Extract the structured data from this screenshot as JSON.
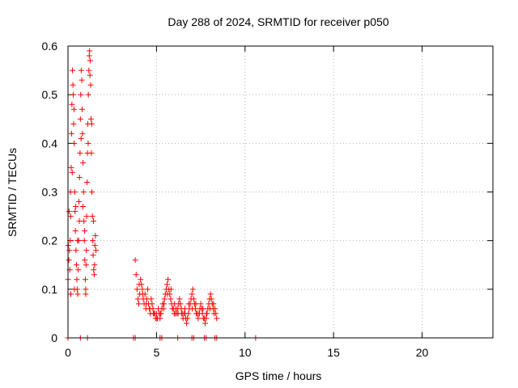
{
  "chart_data": {
    "type": "scatter",
    "title": "Day 288 of 2024, SRMTID for receiver p050",
    "xlabel": "GPS time / hours",
    "ylabel": "SRMTID / TECUs",
    "xlim": [
      0,
      24
    ],
    "ylim": [
      0,
      0.6
    ],
    "xticks": [
      0,
      5,
      10,
      15,
      20
    ],
    "yticks": [
      0,
      0.1,
      0.2,
      0.3,
      0.4,
      0.5,
      0.6
    ],
    "xtick_labels": [
      "0",
      "5",
      "10",
      "15",
      "20"
    ],
    "ytick_labels": [
      "0",
      "0.1",
      "0.2",
      "0.3",
      "0.4",
      "0.5",
      "0.6"
    ],
    "grid": true,
    "marker": "+",
    "color": "#ff0000",
    "points": [
      [
        0.0,
        0.12
      ],
      [
        0.02,
        0.19
      ],
      [
        0.05,
        0.16
      ],
      [
        0.08,
        0.18
      ],
      [
        0.1,
        0.14
      ],
      [
        0.12,
        0.2
      ],
      [
        0.15,
        0.25
      ],
      [
        0.18,
        0.35
      ],
      [
        0.2,
        0.42
      ],
      [
        0.22,
        0.48
      ],
      [
        0.25,
        0.55
      ],
      [
        0.28,
        0.52
      ],
      [
        0.3,
        0.5
      ],
      [
        0.32,
        0.44
      ],
      [
        0.35,
        0.4
      ],
      [
        0.38,
        0.3
      ],
      [
        0.4,
        0.26
      ],
      [
        0.42,
        0.22
      ],
      [
        0.45,
        0.18
      ],
      [
        0.48,
        0.15
      ],
      [
        0.5,
        0.12
      ],
      [
        0.52,
        0.1
      ],
      [
        0.55,
        0.09
      ],
      [
        0.58,
        0.14
      ],
      [
        0.6,
        0.2
      ],
      [
        0.62,
        0.28
      ],
      [
        0.65,
        0.33
      ],
      [
        0.68,
        0.38
      ],
      [
        0.7,
        0.45
      ],
      [
        0.72,
        0.5
      ],
      [
        0.75,
        0.55
      ],
      [
        0.78,
        0.53
      ],
      [
        0.8,
        0.47
      ],
      [
        0.82,
        0.42
      ],
      [
        0.85,
        0.36
      ],
      [
        0.88,
        0.3
      ],
      [
        0.9,
        0.24
      ],
      [
        0.92,
        0.2
      ],
      [
        0.95,
        0.16
      ],
      [
        0.98,
        0.12
      ],
      [
        1.0,
        0.1
      ],
      [
        1.02,
        0.15
      ],
      [
        1.05,
        0.25
      ],
      [
        1.08,
        0.32
      ],
      [
        1.1,
        0.38
      ],
      [
        1.12,
        0.44
      ],
      [
        1.15,
        0.5
      ],
      [
        1.18,
        0.55
      ],
      [
        1.2,
        0.58
      ],
      [
        1.22,
        0.59
      ],
      [
        1.25,
        0.57
      ],
      [
        1.28,
        0.52
      ],
      [
        1.3,
        0.45
      ],
      [
        1.32,
        0.38
      ],
      [
        1.35,
        0.3
      ],
      [
        1.38,
        0.25
      ],
      [
        1.4,
        0.2
      ],
      [
        1.42,
        0.17
      ],
      [
        1.45,
        0.14
      ],
      [
        1.48,
        0.13
      ],
      [
        1.5,
        0.15
      ],
      [
        1.52,
        0.19
      ],
      [
        1.55,
        0.21
      ],
      [
        1.58,
        0.18
      ],
      [
        0.06,
        0.26
      ],
      [
        0.14,
        0.3
      ],
      [
        0.24,
        0.34
      ],
      [
        0.34,
        0.47
      ],
      [
        0.44,
        0.27
      ],
      [
        0.54,
        0.2
      ],
      [
        0.64,
        0.24
      ],
      [
        0.74,
        0.41
      ],
      [
        0.84,
        0.27
      ],
      [
        0.94,
        0.22
      ],
      [
        1.04,
        0.18
      ],
      [
        1.14,
        0.4
      ],
      [
        1.24,
        0.54
      ],
      [
        1.34,
        0.44
      ],
      [
        1.44,
        0.24
      ],
      [
        0.16,
        0.09
      ],
      [
        0.36,
        0.1
      ],
      [
        1.0,
        0.09
      ],
      [
        3.8,
        0.16
      ],
      [
        3.85,
        0.13
      ],
      [
        3.9,
        0.1
      ],
      [
        3.95,
        0.08
      ],
      [
        4.0,
        0.07
      ],
      [
        4.05,
        0.09
      ],
      [
        4.1,
        0.12
      ],
      [
        4.15,
        0.11
      ],
      [
        4.2,
        0.1
      ],
      [
        4.25,
        0.08
      ],
      [
        4.3,
        0.07
      ],
      [
        4.35,
        0.09
      ],
      [
        4.4,
        0.06
      ],
      [
        4.45,
        0.08
      ],
      [
        4.5,
        0.1
      ],
      [
        4.55,
        0.07
      ],
      [
        4.6,
        0.06
      ],
      [
        4.65,
        0.05
      ],
      [
        4.7,
        0.08
      ],
      [
        4.75,
        0.07
      ],
      [
        4.8,
        0.06
      ],
      [
        4.85,
        0.05
      ],
      [
        4.9,
        0.05
      ],
      [
        4.95,
        0.04
      ],
      [
        5.0,
        0.05
      ],
      [
        5.05,
        0.04
      ],
      [
        5.1,
        0.06
      ],
      [
        5.15,
        0.05
      ],
      [
        5.2,
        0.04
      ],
      [
        5.25,
        0.05
      ],
      [
        5.3,
        0.06
      ],
      [
        5.35,
        0.07
      ],
      [
        5.4,
        0.06
      ],
      [
        5.45,
        0.08
      ],
      [
        5.5,
        0.09
      ],
      [
        5.55,
        0.1
      ],
      [
        5.6,
        0.11
      ],
      [
        5.65,
        0.12
      ],
      [
        5.7,
        0.1
      ],
      [
        5.75,
        0.09
      ],
      [
        5.8,
        0.08
      ],
      [
        5.85,
        0.07
      ],
      [
        5.9,
        0.06
      ],
      [
        5.95,
        0.06
      ],
      [
        6.0,
        0.05
      ],
      [
        6.05,
        0.05
      ],
      [
        6.1,
        0.06
      ],
      [
        6.15,
        0.05
      ],
      [
        6.2,
        0.06
      ],
      [
        6.25,
        0.07
      ],
      [
        6.3,
        0.08
      ],
      [
        6.35,
        0.07
      ],
      [
        6.4,
        0.06
      ],
      [
        6.45,
        0.05
      ],
      [
        6.5,
        0.04
      ],
      [
        6.55,
        0.05
      ],
      [
        6.6,
        0.06
      ],
      [
        6.65,
        0.04
      ],
      [
        6.7,
        0.03
      ],
      [
        6.75,
        0.04
      ],
      [
        6.8,
        0.05
      ],
      [
        6.85,
        0.06
      ],
      [
        6.9,
        0.07
      ],
      [
        6.95,
        0.08
      ],
      [
        7.0,
        0.09
      ],
      [
        7.05,
        0.1
      ],
      [
        7.1,
        0.08
      ],
      [
        7.15,
        0.07
      ],
      [
        7.2,
        0.06
      ],
      [
        7.25,
        0.05
      ],
      [
        7.3,
        0.05
      ],
      [
        7.35,
        0.04
      ],
      [
        7.4,
        0.05
      ],
      [
        7.45,
        0.06
      ],
      [
        7.5,
        0.07
      ],
      [
        7.55,
        0.06
      ],
      [
        7.6,
        0.05
      ],
      [
        7.65,
        0.04
      ],
      [
        7.7,
        0.04
      ],
      [
        7.75,
        0.03
      ],
      [
        7.8,
        0.04
      ],
      [
        7.85,
        0.05
      ],
      [
        7.9,
        0.06
      ],
      [
        7.95,
        0.07
      ],
      [
        8.0,
        0.08
      ],
      [
        8.05,
        0.09
      ],
      [
        8.1,
        0.08
      ],
      [
        8.15,
        0.07
      ],
      [
        8.2,
        0.06
      ],
      [
        8.25,
        0.05
      ],
      [
        8.3,
        0.06
      ],
      [
        8.35,
        0.05
      ],
      [
        8.4,
        0.04
      ],
      [
        4.02,
        0.11
      ],
      [
        4.22,
        0.09
      ],
      [
        4.42,
        0.07
      ],
      [
        4.62,
        0.06
      ],
      [
        4.82,
        0.05
      ],
      [
        5.02,
        0.04
      ],
      [
        5.22,
        0.05
      ],
      [
        5.42,
        0.07
      ],
      [
        5.62,
        0.09
      ],
      [
        5.82,
        0.1
      ],
      [
        6.02,
        0.07
      ],
      [
        6.22,
        0.05
      ],
      [
        6.42,
        0.05
      ],
      [
        6.62,
        0.05
      ],
      [
        6.82,
        0.07
      ],
      [
        7.02,
        0.06
      ],
      [
        7.22,
        0.07
      ],
      [
        7.42,
        0.05
      ],
      [
        7.62,
        0.06
      ],
      [
        7.82,
        0.05
      ],
      [
        8.02,
        0.06
      ],
      [
        8.22,
        0.07
      ],
      [
        0.0,
        0
      ],
      [
        0.7,
        0
      ],
      [
        1.1,
        0
      ],
      [
        3.7,
        0
      ],
      [
        3.8,
        0
      ],
      [
        5.2,
        0
      ],
      [
        5.3,
        0
      ],
      [
        6.2,
        0
      ],
      [
        7.0,
        0
      ],
      [
        7.1,
        0
      ],
      [
        7.7,
        0
      ],
      [
        7.8,
        0
      ],
      [
        8.3,
        0
      ],
      [
        8.4,
        0
      ],
      [
        10.6,
        0
      ]
    ]
  }
}
